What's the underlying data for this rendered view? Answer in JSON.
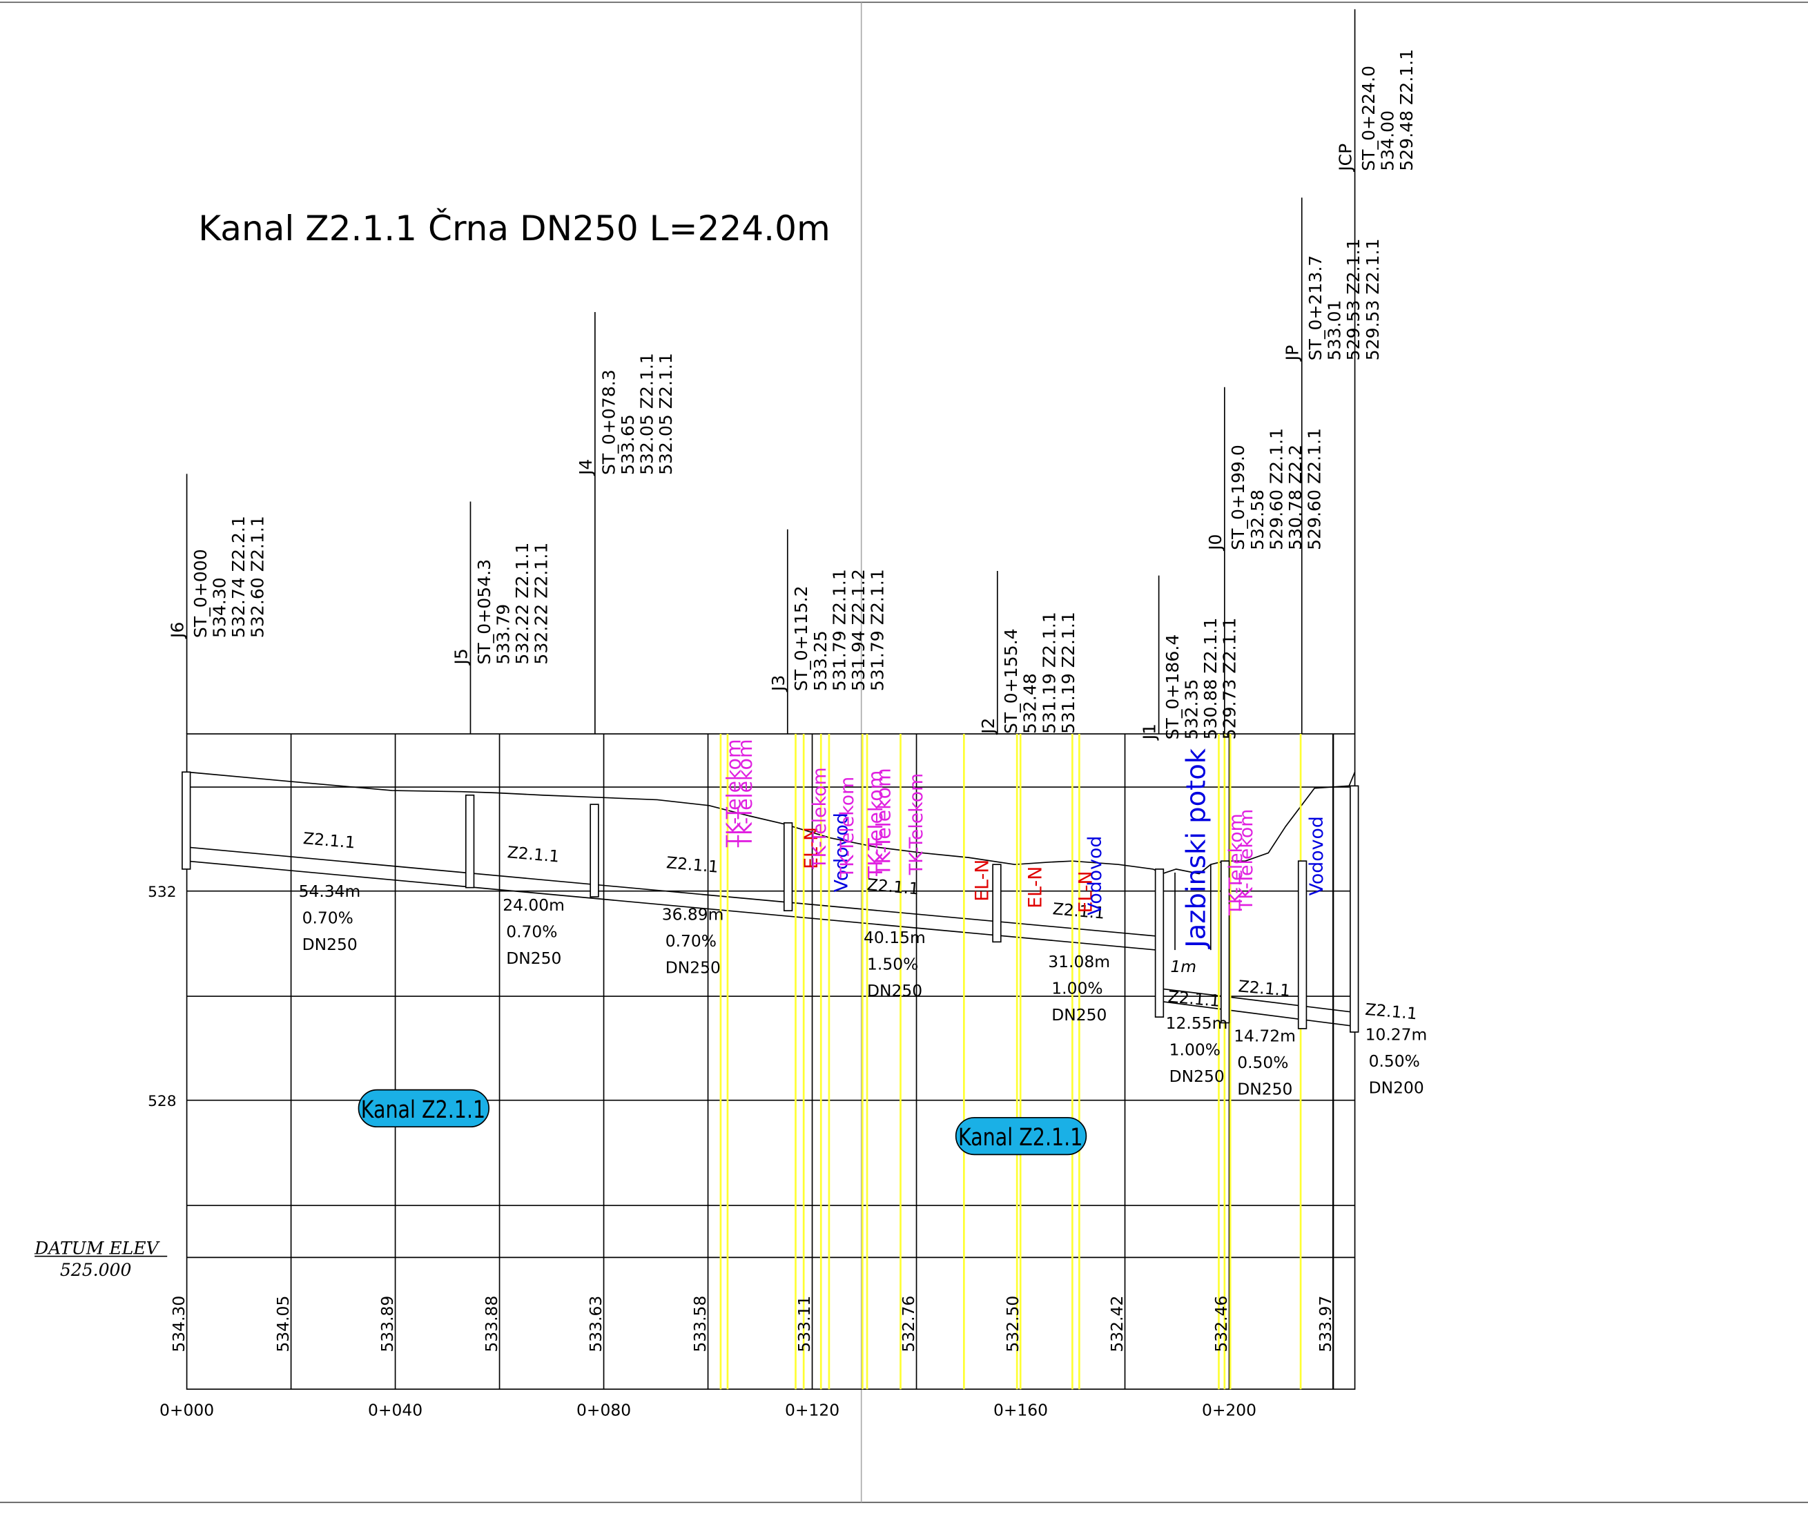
{
  "title": "Kanal Z2.1.1 Črna DN250 L=224.0m",
  "elevation_labels": [
    "532",
    "528"
  ],
  "datum": {
    "label": "DATUM ELEV",
    "value": "525.000"
  },
  "stations": [
    "0+000",
    "0+040",
    "0+080",
    "0+120",
    "0+160",
    "0+200"
  ],
  "ground_elevations": [
    "534.30",
    "534.05",
    "533.89",
    "533.88",
    "533.63",
    "533.58",
    "533.11",
    "532.76",
    "532.50",
    "532.42",
    "532.46",
    "533.97"
  ],
  "manholes": [
    {
      "name": "J6",
      "lines": [
        "ST_0+000",
        "534.30",
        "532.74 Z2.2.1",
        "532.60 Z2.1.1"
      ]
    },
    {
      "name": "J5",
      "lines": [
        "ST_0+054.3",
        "533.79",
        "532.22 Z2.1.1",
        "532.22 Z2.1.1"
      ]
    },
    {
      "name": "J4",
      "lines": [
        "ST_0+078.3",
        "533.65",
        "532.05 Z2.1.1",
        "532.05 Z2.1.1"
      ]
    },
    {
      "name": "J3",
      "lines": [
        "ST_0+115.2",
        "533.25",
        "531.79 Z2.1.1",
        "531.94 Z2.1.2",
        "531.79 Z2.1.1"
      ]
    },
    {
      "name": "J2",
      "lines": [
        "ST_0+155.4",
        "532.48",
        "531.19 Z2.1.1",
        "531.19 Z2.1.1"
      ]
    },
    {
      "name": "J1",
      "lines": [
        "ST_0+186.4",
        "532.35",
        "530.88 Z2.1.1",
        "529.73 Z2.1.1"
      ]
    },
    {
      "name": "J0",
      "lines": [
        "ST_0+199.0",
        "532.58",
        "529.60 Z2.1.1",
        "530.78 Z2.2",
        "529.60 Z2.1.1"
      ]
    },
    {
      "name": "JP",
      "lines": [
        "ST_0+213.7",
        "533.01",
        "529.53 Z2.1.1",
        "529.53 Z2.1.1"
      ]
    },
    {
      "name": "JCP",
      "lines": [
        "ST_0+224.0",
        "534.00",
        "529.48 Z2.1.1"
      ]
    }
  ],
  "segments": [
    {
      "name": "Z2.1.1",
      "length": "54.34m",
      "slope": "0.70%",
      "dn": "DN250"
    },
    {
      "name": "Z2.1.1",
      "length": "24.00m",
      "slope": "0.70%",
      "dn": "DN250"
    },
    {
      "name": "Z2.1.1",
      "length": "36.89m",
      "slope": "0.70%",
      "dn": "DN250"
    },
    {
      "name": "Z2.1.1",
      "length": "40.15m",
      "slope": "1.50%",
      "dn": "DN250"
    },
    {
      "name": "Z2.1.1",
      "length": "31.08m",
      "slope": "1.00%",
      "dn": "DN250"
    },
    {
      "name": "Z2.1.1",
      "length": "12.55m",
      "slope": "1.00%",
      "dn": "DN250"
    },
    {
      "name": "Z2.1.1",
      "length": "14.72m",
      "slope": "0.50%",
      "dn": "DN250"
    },
    {
      "name": "Z2.1.1",
      "length": "10.27m",
      "slope": "0.50%",
      "dn": "DN200"
    }
  ],
  "partial_label": "1m",
  "utilities": [
    {
      "label": "TK-Telekom",
      "color": "#e020e0"
    },
    {
      "label": "TK-Telekom",
      "color": "#e020e0"
    },
    {
      "label": "EL-N",
      "color": "#e00000"
    },
    {
      "label": "TK-Telekom",
      "color": "#e020e0"
    },
    {
      "label": "Vodovod",
      "color": "#0000e0"
    },
    {
      "label": "TK-Telekom",
      "color": "#e020e0"
    },
    {
      "label": "TK-Telekom",
      "color": "#e020e0"
    },
    {
      "label": "TK-Telekom",
      "color": "#e020e0"
    },
    {
      "label": "TK-Telekom",
      "color": "#e020e0"
    },
    {
      "label": "EL-N",
      "color": "#e00000"
    },
    {
      "label": "EL-N",
      "color": "#e00000"
    },
    {
      "label": "EL-N",
      "color": "#e00000"
    },
    {
      "label": "Vodovod",
      "color": "#0000e0"
    },
    {
      "label": "Jazbinski potok",
      "color": "#0000e0"
    },
    {
      "label": "TK-Telekom",
      "color": "#e020e0"
    },
    {
      "label": "TK-Telekom",
      "color": "#e020e0"
    },
    {
      "label": "Vodovod",
      "color": "#0000e0"
    }
  ],
  "badges": [
    "Kanal Z2.1.1",
    "Kanal Z2.1.1"
  ]
}
